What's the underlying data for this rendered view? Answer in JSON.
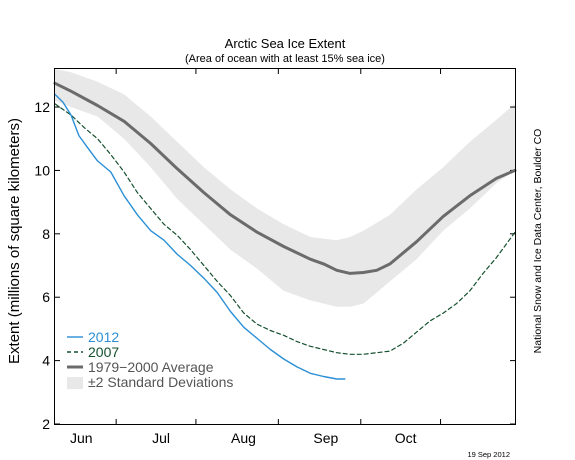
{
  "chart_data": {
    "type": "line",
    "title": "Arctic Sea Ice Extent",
    "subtitle": "(Area of ocean with at least 15% sea ice)",
    "ylabel": "Extent (millions of square kilometers)",
    "xlabel": "",
    "ylim": [
      2,
      13.2
    ],
    "yticks": [
      2,
      4,
      6,
      8,
      10,
      12
    ],
    "xlim": [
      144,
      317
    ],
    "month_ticks": [
      {
        "label": "Jun",
        "day": 152
      },
      {
        "label": "Jul",
        "day": 182
      },
      {
        "label": "Aug",
        "day": 213
      },
      {
        "label": "Sep",
        "day": 244
      },
      {
        "label": "Oct",
        "day": 274
      }
    ],
    "month_boundaries": [
      167,
      197,
      228,
      259,
      289
    ],
    "band": {
      "name": "±2 Standard Deviations",
      "color": "#e8e8e8",
      "day": [
        144,
        150,
        160,
        170,
        180,
        190,
        200,
        210,
        220,
        230,
        240,
        250,
        255,
        260,
        270,
        280,
        290,
        300,
        310,
        317
      ],
      "upper": [
        13.2,
        13.1,
        12.8,
        12.4,
        11.7,
        10.9,
        10.1,
        9.4,
        8.8,
        8.3,
        7.9,
        7.8,
        7.9,
        8.1,
        8.6,
        9.4,
        10.1,
        10.9,
        11.6,
        12.1
      ],
      "lower": [
        12.2,
        12.0,
        11.7,
        11.0,
        10.1,
        9.1,
        8.3,
        7.5,
        6.9,
        6.2,
        5.9,
        5.7,
        5.7,
        5.8,
        6.5,
        7.2,
        8.1,
        8.8,
        9.6,
        10.0
      ]
    },
    "series": [
      {
        "name": "1979−2000 Average",
        "color": "#6b6b6b",
        "style": "solid",
        "width": 3,
        "day": [
          144,
          150,
          160,
          170,
          180,
          190,
          200,
          210,
          220,
          230,
          240,
          245,
          250,
          255,
          260,
          265,
          270,
          280,
          290,
          300,
          310,
          317
        ],
        "values": [
          12.75,
          12.5,
          12.05,
          11.55,
          10.85,
          10.05,
          9.3,
          8.6,
          8.05,
          7.6,
          7.2,
          7.05,
          6.85,
          6.75,
          6.78,
          6.85,
          7.05,
          7.75,
          8.55,
          9.2,
          9.75,
          10.0
        ]
      },
      {
        "name": "2007",
        "color": "#14502e",
        "style": "dashed",
        "width": 1.2,
        "day": [
          144,
          150,
          155,
          160,
          165,
          170,
          175,
          180,
          185,
          190,
          195,
          200,
          205,
          210,
          215,
          220,
          225,
          230,
          235,
          240,
          245,
          250,
          255,
          260,
          265,
          270,
          275,
          280,
          285,
          290,
          295,
          300,
          305,
          310,
          317
        ],
        "values": [
          12.1,
          11.75,
          11.35,
          11.0,
          10.5,
          9.95,
          9.3,
          8.8,
          8.3,
          7.95,
          7.5,
          7.0,
          6.5,
          6.05,
          5.5,
          5.15,
          4.95,
          4.8,
          4.6,
          4.45,
          4.35,
          4.25,
          4.2,
          4.2,
          4.25,
          4.3,
          4.55,
          4.9,
          5.25,
          5.5,
          5.8,
          6.2,
          6.75,
          7.25,
          8.05
        ]
      },
      {
        "name": "2012",
        "color": "#2b8fd6",
        "style": "solid",
        "width": 1.4,
        "day": [
          144,
          147,
          150,
          153,
          156,
          160,
          165,
          170,
          175,
          180,
          185,
          190,
          195,
          200,
          205,
          210,
          215,
          220,
          225,
          230,
          235,
          240,
          245,
          250,
          253
        ],
        "values": [
          12.4,
          12.15,
          11.75,
          11.1,
          10.75,
          10.3,
          9.95,
          9.2,
          8.6,
          8.1,
          7.8,
          7.35,
          7.0,
          6.6,
          6.15,
          5.55,
          5.05,
          4.7,
          4.35,
          4.05,
          3.8,
          3.6,
          3.5,
          3.42,
          3.42
        ]
      }
    ],
    "legend": {
      "placement": "bottom-left",
      "entries": [
        {
          "label": "2012",
          "color": "#2b8fd6",
          "style": "solid"
        },
        {
          "label": "2007",
          "color": "#14502e",
          "style": "dashed"
        },
        {
          "label": "1979−2000 Average",
          "color": "#6b6b6b",
          "style": "thick"
        },
        {
          "label": "±2 Standard Deviations",
          "color": "#e8e8e8",
          "style": "box"
        }
      ]
    },
    "grid": false
  },
  "credit": "National Snow and Ice Data Center, Boulder CO",
  "datestamp": "19 Sep 2012"
}
